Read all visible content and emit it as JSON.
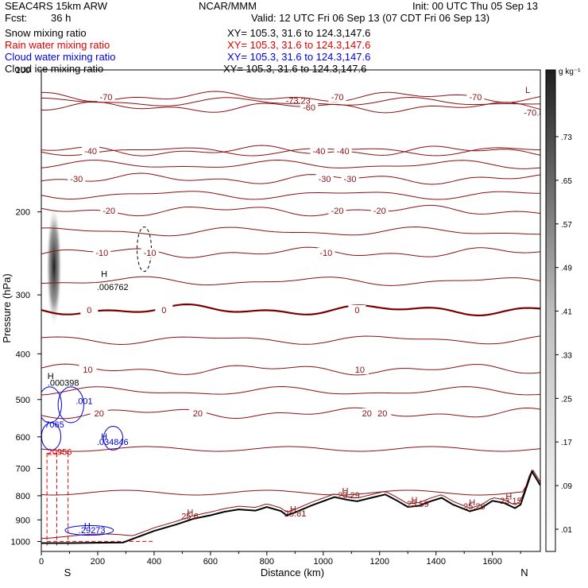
{
  "header": {
    "model": "SEAC4RS 15km ARW",
    "org": "NCAR/MMM",
    "init": "Init: 00 UTC Thu 05 Sep 13",
    "fcst_label": "Fcst:",
    "fcst_value": "36 h",
    "valid": "Valid: 12 UTC Fri 06 Sep 13 (07 CDT Fri 06 Sep 13)"
  },
  "fields": [
    {
      "label": "Snow mixing ratio",
      "xy": "XY= 105.3, 31.6 to 124.3,147.6",
      "color": "#000000"
    },
    {
      "label": "Rain water mixing ratio",
      "xy": "XY= 105.3, 31.6 to 124.3,147.6",
      "color": "#e00000"
    },
    {
      "label": "Cloud water mixing ratio",
      "xy": "XY= 105.3, 31.6 to 124.3,147.6",
      "color": "#0000dd"
    },
    {
      "label": "Cloud ice mixing ratio",
      "xy": "XY= 105.3, 31.6 to 124.3,147.6",
      "color": "#000000"
    }
  ],
  "colors": {
    "temperature": "#8b1010",
    "freezing_line": "#7a0000",
    "terrain": "#000000",
    "rain": "#e00000",
    "cloud_water": "#0000dd",
    "snow": "#000000"
  },
  "chart_data": {
    "type": "contour",
    "xlabel": "Distance (km)",
    "ylabel": "Pressure (hPa)",
    "xlim": [
      0,
      1770
    ],
    "ylim": [
      1050,
      100
    ],
    "y_scale": "log",
    "x_ticks": [
      0,
      200,
      400,
      600,
      800,
      1000,
      1200,
      1400,
      1600
    ],
    "y_ticks": [
      100,
      200,
      300,
      400,
      500,
      600,
      700,
      800,
      900,
      1000
    ],
    "x_ends": {
      "left": "S",
      "right": "N"
    },
    "colorbar": {
      "unit": "g kg⁻¹",
      "ticks": [
        ".01",
        ".09",
        ".17",
        ".25",
        ".33",
        ".41",
        ".49",
        ".57",
        ".65",
        ".73"
      ]
    },
    "temperature_contours": [
      {
        "level": -70,
        "labels": [
          {
            "x": 230,
            "text": "-70"
          },
          {
            "x": 1050,
            "text": "-70"
          },
          {
            "x": 1540,
            "text": "-70"
          }
        ]
      },
      {
        "level": -60,
        "labels": [
          {
            "x": 950,
            "text": "-60"
          }
        ]
      },
      {
        "level": -40,
        "labels": [
          {
            "x": 175,
            "text": "-40"
          },
          {
            "x": 985,
            "text": "-40"
          },
          {
            "x": 1070,
            "text": "-40"
          }
        ]
      },
      {
        "level": -30,
        "labels": [
          {
            "x": 125,
            "text": "-30"
          },
          {
            "x": 1005,
            "text": "-30"
          },
          {
            "x": 1095,
            "text": "-30"
          }
        ]
      },
      {
        "level": -20,
        "labels": [
          {
            "x": 240,
            "text": "-20"
          },
          {
            "x": 1050,
            "text": "-20"
          },
          {
            "x": 1200,
            "text": "-20"
          }
        ]
      },
      {
        "level": -10,
        "labels": [
          {
            "x": 215,
            "text": "-10"
          },
          {
            "x": 385,
            "text": "-10"
          },
          {
            "x": 1010,
            "text": "-10"
          }
        ]
      },
      {
        "level": 0,
        "labels": [
          {
            "x": 170,
            "text": "0"
          },
          {
            "x": 435,
            "text": "0"
          },
          {
            "x": 1120,
            "text": "0"
          }
        ]
      },
      {
        "level": 10,
        "labels": [
          {
            "x": 165,
            "text": "10"
          },
          {
            "x": 1130,
            "text": "10"
          }
        ]
      },
      {
        "level": 20,
        "labels": [
          {
            "x": 205,
            "text": "20"
          },
          {
            "x": 555,
            "text": "20"
          },
          {
            "x": 1210,
            "text": "20"
          },
          {
            "x": 1155,
            "text": "20"
          }
        ]
      }
    ],
    "annotations": [
      {
        "x": 195,
        "p": 275,
        "text": "H",
        "color": "#000000"
      },
      {
        "x": 180,
        "p": 293,
        "text": ".006762",
        "color": "#000000"
      },
      {
        "x": 5,
        "p": 452,
        "text": "H",
        "color": "#000000"
      },
      {
        "x": 5,
        "p": 468,
        "text": ".000398",
        "color": "#000000"
      },
      {
        "x": 105,
        "p": 511,
        "text": ".001",
        "color": "#0000dd"
      },
      {
        "x": -5,
        "p": 573,
        "text": "7065",
        "color": "#0000dd"
      },
      {
        "x": 195,
        "p": 608,
        "text": "H",
        "color": "#0000dd"
      },
      {
        "x": 180,
        "p": 624,
        "text": ".034846",
        "color": "#0000dd"
      },
      {
        "x": 5,
        "p": 655,
        "text": "20956",
        "color": "#e00000"
      },
      {
        "x": 135,
        "p": 940,
        "text": "H",
        "color": "#0000dd"
      },
      {
        "x": 115,
        "p": 960,
        "text": ".29273",
        "color": "#0000dd"
      },
      {
        "x": 500,
        "p": 880,
        "text": "H",
        "color": "#8b1010"
      },
      {
        "x": 480,
        "p": 898,
        "text": "25.6",
        "color": "#8b1010"
      },
      {
        "x": 865,
        "p": 867,
        "text": "H",
        "color": "#8b1010"
      },
      {
        "x": 845,
        "p": 885,
        "text": "25.81",
        "color": "#8b1010"
      },
      {
        "x": 1050,
        "p": 793,
        "text": "H",
        "color": "#8b1010"
      },
      {
        "x": 1035,
        "p": 810,
        "text": "23.29",
        "color": "#8b1010"
      },
      {
        "x": 1295,
        "p": 828,
        "text": "H",
        "color": "#8b1010"
      },
      {
        "x": 1280,
        "p": 845,
        "text": "23.59",
        "color": "#8b1010"
      },
      {
        "x": 1500,
        "p": 838,
        "text": "H",
        "color": "#8b1010"
      },
      {
        "x": 1480,
        "p": 855,
        "text": "25.26",
        "color": "#8b1010"
      },
      {
        "x": 1630,
        "p": 815,
        "text": "H",
        "color": "#8b1010"
      },
      {
        "x": 1610,
        "p": 832,
        "text": "23.15",
        "color": "#8b1010"
      },
      {
        "x": 1700,
        "p": 112,
        "text": "L",
        "color": "#8b1010"
      },
      {
        "x": 1695,
        "p": 125,
        "text": "-70.8",
        "color": "#8b1010"
      },
      {
        "x": 850,
        "p": 118,
        "text": "-73.23",
        "color": "#8b1010"
      }
    ],
    "terrain": [
      [
        0,
        1008
      ],
      [
        100,
        1008
      ],
      [
        290,
        1005
      ],
      [
        400,
        950
      ],
      [
        480,
        920
      ],
      [
        540,
        895
      ],
      [
        600,
        880
      ],
      [
        650,
        865
      ],
      [
        700,
        855
      ],
      [
        760,
        860
      ],
      [
        800,
        845
      ],
      [
        850,
        862
      ],
      [
        870,
        880
      ],
      [
        900,
        868
      ],
      [
        960,
        838
      ],
      [
        1040,
        805
      ],
      [
        1080,
        815
      ],
      [
        1120,
        822
      ],
      [
        1170,
        808
      ],
      [
        1220,
        795
      ],
      [
        1260,
        818
      ],
      [
        1300,
        845
      ],
      [
        1340,
        840
      ],
      [
        1380,
        822
      ],
      [
        1420,
        808
      ],
      [
        1460,
        835
      ],
      [
        1520,
        863
      ],
      [
        1560,
        850
      ],
      [
        1600,
        820
      ],
      [
        1640,
        828
      ],
      [
        1680,
        850
      ],
      [
        1700,
        835
      ],
      [
        1740,
        710
      ],
      [
        1770,
        760
      ]
    ],
    "rain_shafts_x": [
      20,
      55,
      95
    ],
    "surface_contour_p": 980
  }
}
